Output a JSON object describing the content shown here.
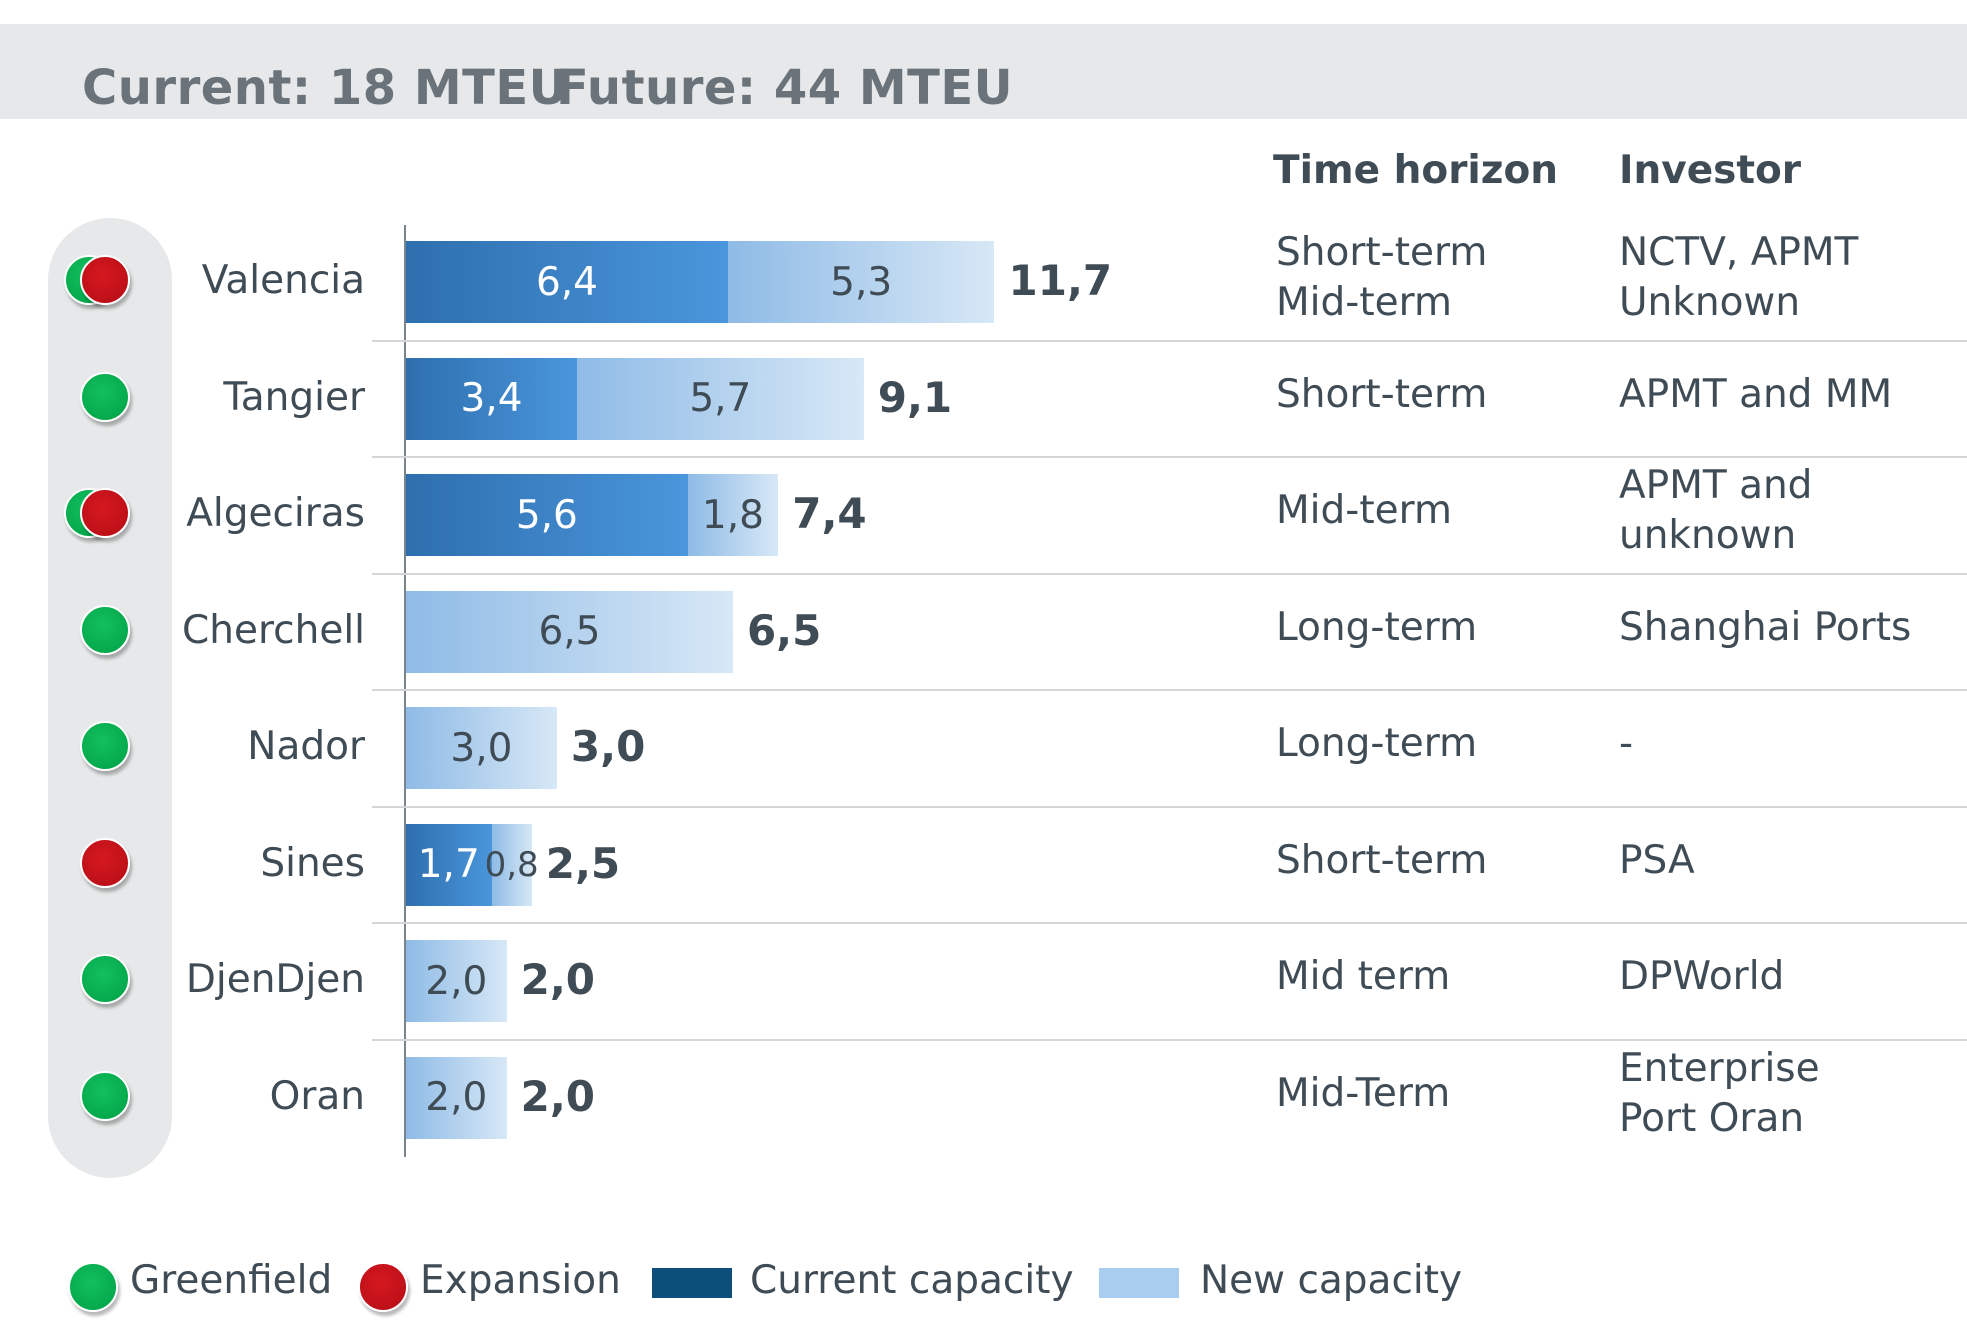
{
  "header": {
    "current": "Current: 18 MTEU",
    "future": "Future: 44 MTEU"
  },
  "columns": {
    "time_horizon": "Time horizon",
    "investor": "Investor"
  },
  "chart_data": {
    "type": "bar",
    "orientation": "horizontal",
    "stacked": true,
    "categories": [
      "Valencia",
      "Tangier",
      "Algeciras",
      "Cherchell",
      "Nador",
      "Sines",
      "DjenDjen",
      "Oran"
    ],
    "series": [
      {
        "name": "Current capacity",
        "values": [
          6.4,
          3.4,
          5.6,
          0,
          0,
          1.7,
          0,
          0
        ],
        "labels": [
          "6,4",
          "3,4",
          "5,6",
          "",
          "",
          "1,7",
          "",
          ""
        ]
      },
      {
        "name": "New capacity",
        "values": [
          5.3,
          5.7,
          1.8,
          6.5,
          3.0,
          0.8,
          2.0,
          2.0
        ],
        "labels": [
          "5,3",
          "5,7",
          "1,8",
          "6,5",
          "3,0",
          "0,8",
          "2,0",
          "2,0"
        ]
      }
    ],
    "totals": [
      11.7,
      9.1,
      7.4,
      6.5,
      3.0,
      2.5,
      2.0,
      2.0
    ],
    "total_labels": [
      "11,7",
      "9,1",
      "7,4",
      "6,5",
      "3,0",
      "2,5",
      "2,0",
      "2,0"
    ],
    "project_type": [
      [
        "Greenfield",
        "Expansion"
      ],
      [
        "Greenfield"
      ],
      [
        "Greenfield",
        "Expansion"
      ],
      [
        "Greenfield"
      ],
      [
        "Greenfield"
      ],
      [
        "Expansion"
      ],
      [
        "Greenfield"
      ],
      [
        "Greenfield"
      ]
    ],
    "time_horizon": [
      [
        "Short-term",
        "Mid-term"
      ],
      [
        "Short-term"
      ],
      [
        "Mid-term"
      ],
      [
        "Long-term"
      ],
      [
        "Long-term"
      ],
      [
        "Short-term"
      ],
      [
        "Mid term"
      ],
      [
        "Mid-Term"
      ]
    ],
    "investor": [
      [
        "NCTV, APMT",
        "Unknown"
      ],
      [
        "APMT and MM"
      ],
      [
        "APMT and",
        "unknown"
      ],
      [
        "Shanghai Ports"
      ],
      [
        "-"
      ],
      [
        "PSA"
      ],
      [
        "DPWorld"
      ],
      [
        "Enterprise",
        "Port Oran"
      ]
    ],
    "xlim": [
      0,
      12
    ],
    "grid": false,
    "legend_position": "bottom",
    "colors": {
      "current_capacity": "#0c4f7a",
      "current_bar_dark": "#2e6fae",
      "current_bar_light": "#4a96dc",
      "new_capacity": "#a9cdee",
      "greenfield": "#00a046",
      "expansion": "#b40d15"
    }
  },
  "legend": {
    "greenfield": "Greenfield",
    "expansion": "Expansion",
    "current_capacity": "Current capacity",
    "new_capacity": "New capacity"
  }
}
